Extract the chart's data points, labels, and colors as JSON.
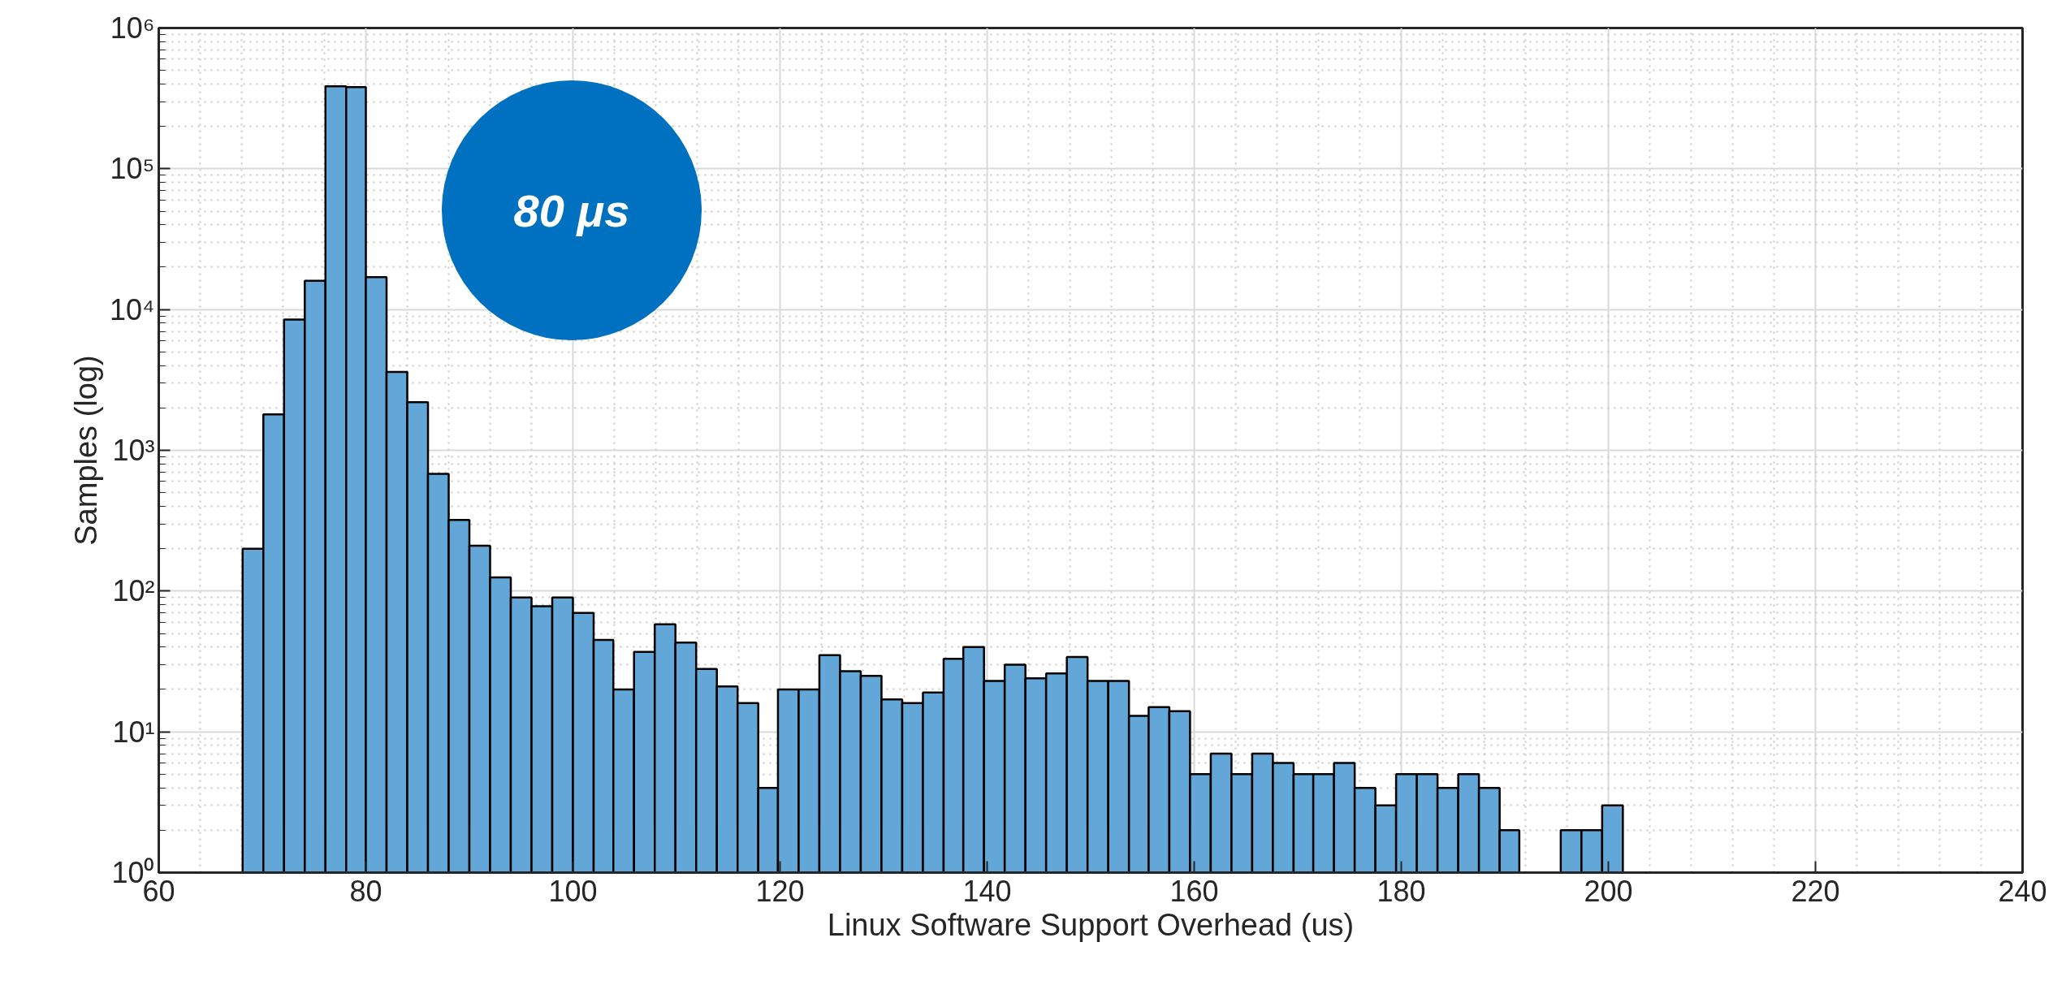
{
  "chart_data": {
    "type": "histogram",
    "xlabel": "Linux Software Support Overhead (us)",
    "ylabel": "Samples (log)",
    "annotations": [
      "80 μs"
    ],
    "bins": [
      68.1,
      70.1,
      72.1,
      74.1,
      76.1,
      78.1,
      80.0,
      82.0,
      84.0,
      86.0,
      88.0,
      90.0,
      92.0,
      94.0,
      96.0,
      98.0,
      100.0,
      102.0,
      103.9,
      105.9,
      107.9,
      109.9,
      111.9,
      113.9,
      115.9,
      117.9,
      119.8,
      121.8,
      123.8,
      125.8,
      127.8,
      129.8,
      131.8,
      133.8,
      135.8,
      137.7,
      139.7,
      141.7,
      143.7,
      145.7,
      147.7,
      149.7,
      151.7,
      153.7,
      155.6,
      157.6,
      159.6,
      161.6,
      163.6,
      165.6,
      167.6,
      169.6,
      171.5,
      173.5,
      175.5,
      177.5,
      179.5,
      181.5,
      183.5,
      185.5,
      187.5,
      189.5,
      191.4,
      195.4,
      197.4,
      199.4,
      201.4
    ],
    "values": [
      200,
      1800,
      8500,
      16000,
      385000,
      380000,
      17000,
      3600,
      2200,
      680,
      320,
      210,
      125,
      90,
      78,
      90,
      70,
      45,
      20,
      37,
      58,
      43,
      28,
      21,
      16,
      4,
      20,
      20,
      35,
      27,
      25,
      17,
      16,
      19,
      33,
      40,
      23,
      30,
      24,
      26,
      34,
      23,
      23,
      13,
      15,
      14,
      5,
      7,
      5,
      7,
      6,
      5,
      5,
      6,
      4,
      3,
      5,
      5,
      4,
      5,
      4,
      2,
      null,
      2,
      2,
      3
    ],
    "color": "#63a7d8",
    "log": "y",
    "xlim": [
      60,
      240
    ],
    "ylim": [
      1,
      1000000
    ],
    "xticks": [
      60,
      80,
      100,
      120,
      140,
      160,
      180,
      200,
      220,
      240
    ],
    "yticks": [
      {
        "value": 1,
        "label": "10⁰"
      },
      {
        "value": 10,
        "label": "10¹"
      },
      {
        "value": 100,
        "label": "10²"
      },
      {
        "value": 1000,
        "label": "10³"
      },
      {
        "value": 10000,
        "label": "10⁴"
      },
      {
        "value": 100000,
        "label": "10⁵"
      },
      {
        "value": 1000000,
        "label": "10⁶"
      }
    ],
    "grid": true
  }
}
